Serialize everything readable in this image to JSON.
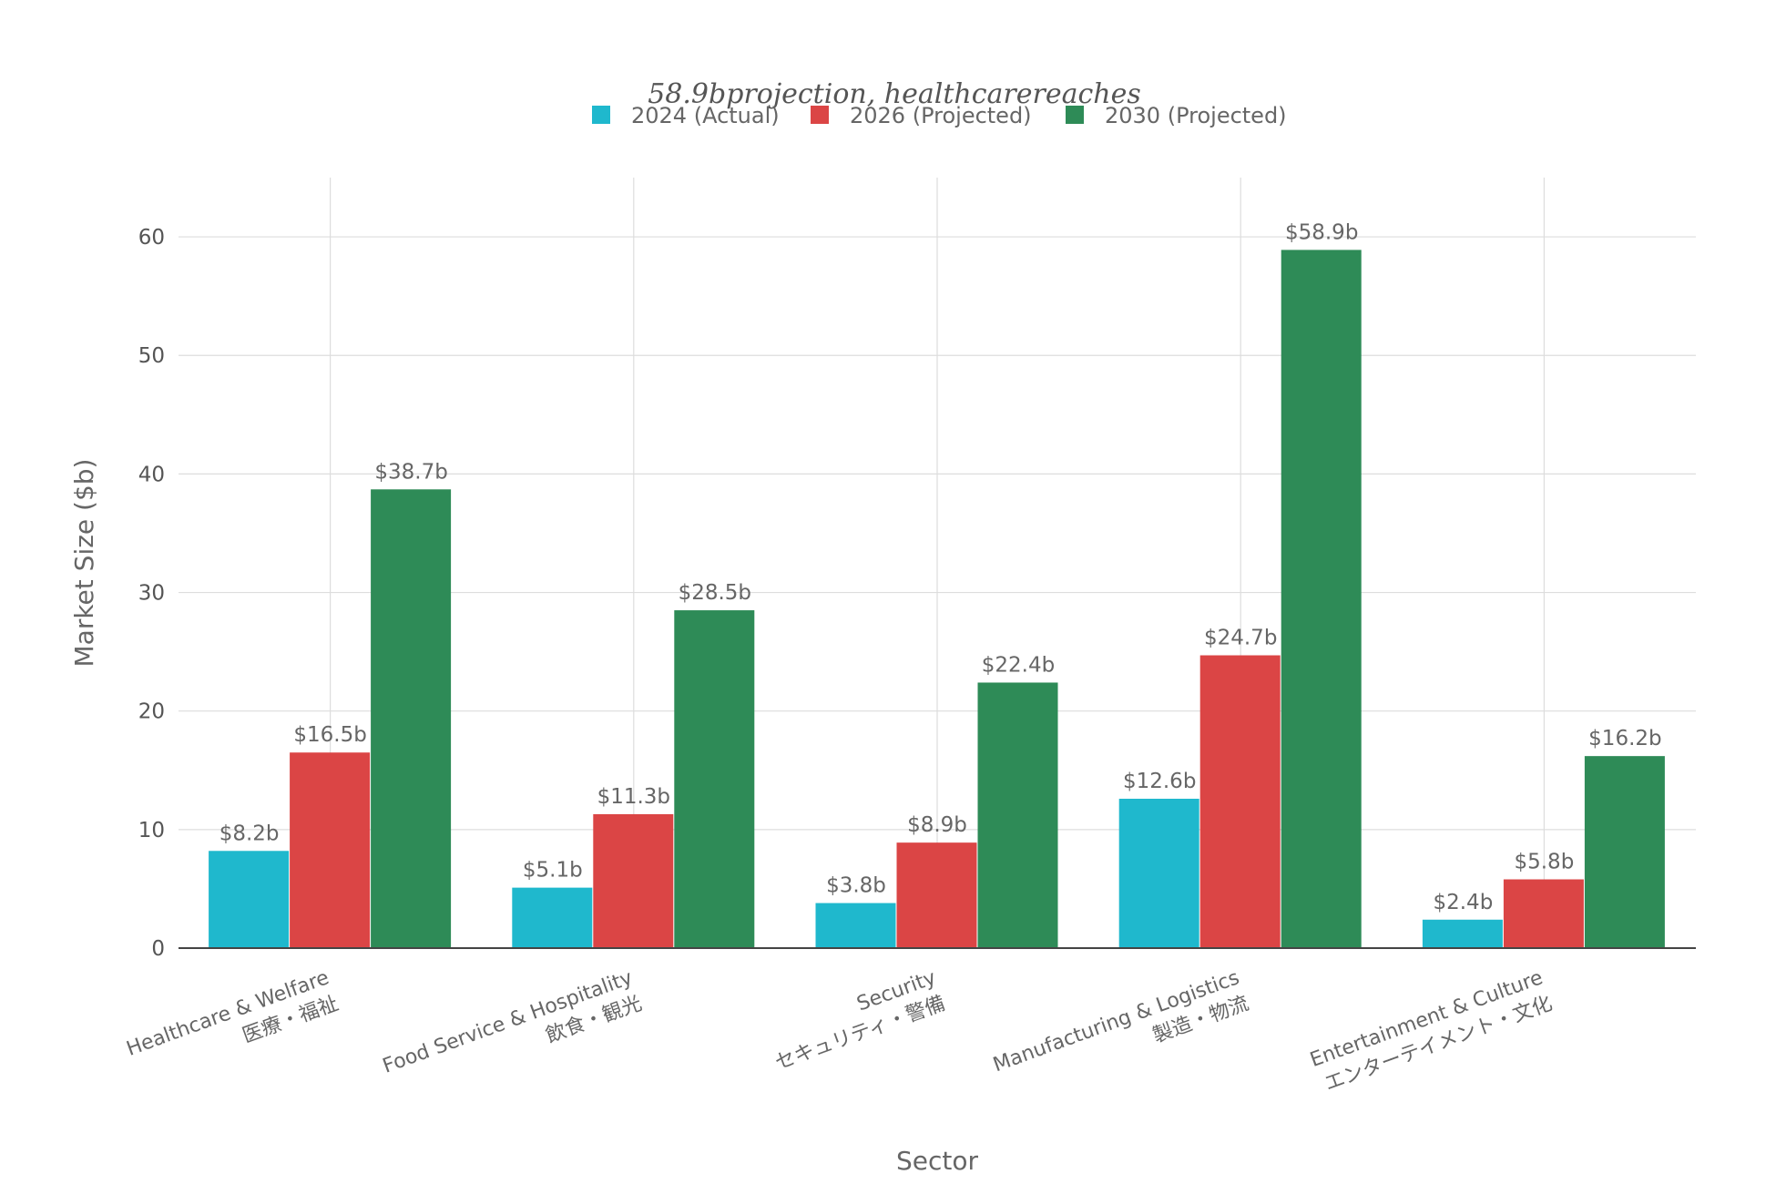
{
  "chart_data": {
    "type": "bar",
    "title": "58.9bprojection, healthcarereaches",
    "xlabel": "Sector",
    "ylabel": "Market Size ($b)",
    "ylim": [
      0,
      65
    ],
    "yticks": [
      0,
      10,
      20,
      30,
      40,
      50,
      60
    ],
    "grid": true,
    "legend_position": "top-center",
    "categories": [
      [
        "Healthcare & Welfare",
        "医療・福祉"
      ],
      [
        "Food Service & Hospitality",
        "飲食・観光"
      ],
      [
        "Security",
        "セキュリティ・警備"
      ],
      [
        "Manufacturing & Logistics",
        "製造・物流"
      ],
      [
        "Entertainment & Culture",
        "エンターテイメント・文化"
      ]
    ],
    "series": [
      {
        "name": "2024 (Actual)",
        "color": "#1FB8CD",
        "values": [
          8.2,
          5.1,
          3.8,
          12.6,
          2.4
        ],
        "labels": [
          "$8.2b",
          "$5.1b",
          "$3.8b",
          "$12.6b",
          "$2.4b"
        ]
      },
      {
        "name": "2026 (Projected)",
        "color": "#DB4545",
        "values": [
          16.5,
          11.3,
          8.9,
          24.7,
          5.8
        ],
        "labels": [
          "$16.5b",
          "$11.3b",
          "$8.9b",
          "$24.7b",
          "$5.8b"
        ]
      },
      {
        "name": "2030 (Projected)",
        "color": "#2E8B57",
        "values": [
          38.7,
          28.5,
          22.4,
          58.9,
          16.2
        ],
        "labels": [
          "$38.7b",
          "$28.5b",
          "$22.4b",
          "$58.9b",
          "$16.2b"
        ]
      }
    ]
  }
}
